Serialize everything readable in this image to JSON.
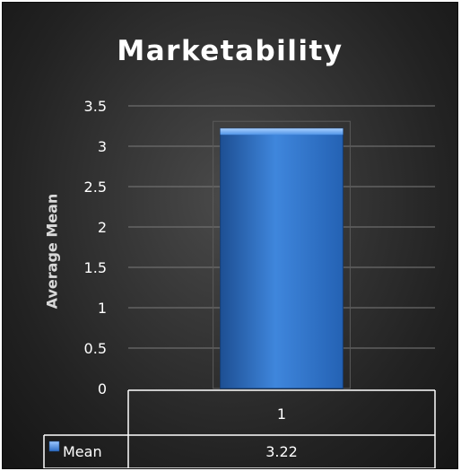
{
  "chart_data": {
    "type": "bar",
    "title": "Marketability",
    "ylabel": "Average Mean",
    "xlabel": "",
    "categories": [
      "1"
    ],
    "series": [
      {
        "name": "Mean",
        "values": [
          3.22
        ]
      }
    ],
    "ylim": [
      0,
      3.5
    ],
    "yticks": [
      "0",
      "0.5",
      "1",
      "1.5",
      "2",
      "2.5",
      "3",
      "3.5"
    ],
    "grid": true,
    "data_table": {
      "shown": true,
      "row_label": "Mean",
      "values": [
        "3.22"
      ]
    },
    "colors": {
      "bar": "#3d7fd6",
      "background": "#2b2b2b",
      "text": "#ffffff"
    }
  }
}
